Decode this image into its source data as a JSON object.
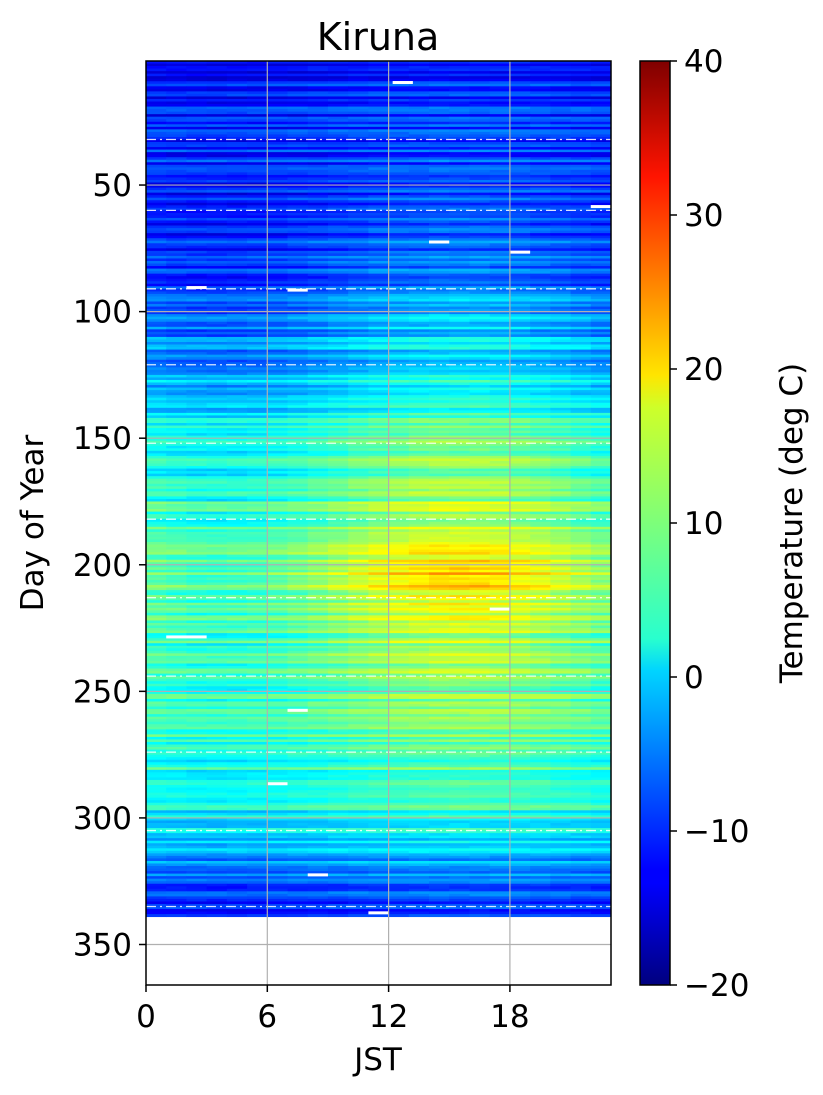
{
  "chart_data": {
    "type": "heatmap",
    "title": "Kiruna",
    "xlabel": "JST",
    "ylabel": "Day of Year",
    "xlim": [
      0,
      23
    ],
    "ylim": [
      1,
      366
    ],
    "y_inverted": true,
    "x_ticks": [
      0,
      6,
      12,
      18
    ],
    "y_ticks": [
      50,
      100,
      150,
      200,
      250,
      300,
      350
    ],
    "grid": true,
    "colormap": "jet",
    "data_day_range": [
      1,
      338
    ],
    "colorbar": {
      "label": "Temperature (deg C)",
      "vmin": -20,
      "vmax": 40,
      "ticks": [
        40,
        30,
        20,
        10,
        0,
        -10,
        -20
      ],
      "tick_labels": [
        "40",
        "30",
        "20",
        "10",
        "0",
        "−10",
        "−20"
      ]
    },
    "month_boundary_days": [
      32,
      60,
      91,
      121,
      152,
      182,
      213,
      244,
      274,
      305,
      335
    ],
    "temperature_profile": {
      "seasonal_days": [
        1,
        20,
        40,
        60,
        80,
        100,
        120,
        140,
        160,
        180,
        195,
        200,
        205,
        215,
        230,
        250,
        270,
        290,
        310,
        325,
        338
      ],
      "seasonal_mean": [
        -12,
        -10,
        -9,
        -9,
        -8,
        -5,
        -1,
        3,
        7,
        9,
        12,
        16,
        15,
        11,
        9,
        8,
        7,
        5,
        0,
        -7,
        -12
      ],
      "diurnal_amplitude": [
        1,
        1,
        1,
        2,
        2,
        3,
        3,
        3,
        4,
        4,
        5,
        7,
        7,
        5,
        4,
        3,
        2,
        2,
        1,
        1,
        1
      ]
    },
    "missing_segments": [
      {
        "day": 9,
        "from_hour": 12.2,
        "to_hour": 13.2
      },
      {
        "day": 58,
        "from_hour": 22.0,
        "to_hour": 23.0
      },
      {
        "day": 72,
        "from_hour": 14.0,
        "to_hour": 15.0
      },
      {
        "day": 76,
        "from_hour": 18.0,
        "to_hour": 19.0
      },
      {
        "day": 90,
        "from_hour": 2.0,
        "to_hour": 3.0
      },
      {
        "day": 91,
        "from_hour": 7.0,
        "to_hour": 8.0
      },
      {
        "day": 217,
        "from_hour": 17.0,
        "to_hour": 18.0
      },
      {
        "day": 228,
        "from_hour": 1.0,
        "to_hour": 3.0
      },
      {
        "day": 257,
        "from_hour": 7.0,
        "to_hour": 8.0
      },
      {
        "day": 286,
        "from_hour": 6.0,
        "to_hour": 7.0
      },
      {
        "day": 322,
        "from_hour": 8.0,
        "to_hour": 9.0
      },
      {
        "day": 337,
        "from_hour": 11.0,
        "to_hour": 12.0
      }
    ]
  }
}
